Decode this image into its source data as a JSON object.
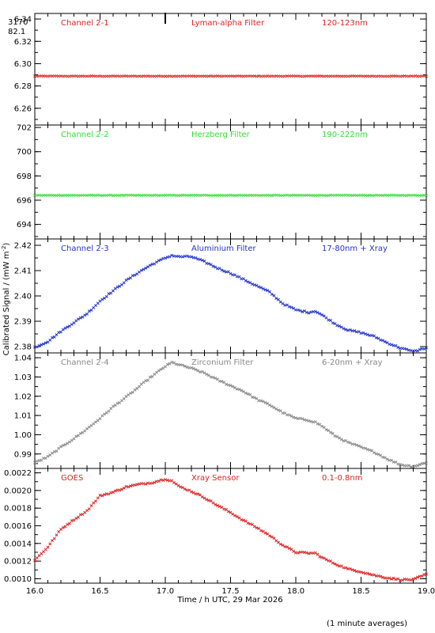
{
  "figure": {
    "ylabel": "Calibrated Signal / (mW m",
    "ylabel_sup": "-2",
    "ylabel_close": ")",
    "xlabel": "Time / h UTC, 29 Mar 2026",
    "footer": "(1 minute averages)",
    "corner_top": "3170",
    "corner_bottom": "82.1"
  },
  "chart_data": [
    {
      "type": "scatter",
      "texts": [
        "Channel 2-1",
        "Lyman-alpha Filter",
        "120-123nm"
      ],
      "color": "#dd2222",
      "ylim": [
        6.245,
        6.345
      ],
      "yticks": [
        6.26,
        6.28,
        6.3,
        6.32,
        6.34
      ],
      "ytick_labels": [
        "6.26",
        "6.28",
        "6.30",
        "6.32",
        "6.34"
      ],
      "x": [
        16.0,
        19.0
      ],
      "y": [
        6.2888,
        6.2888
      ]
    },
    {
      "type": "scatter",
      "texts": [
        "Channel 2-2",
        "Herzberg Filter",
        "190-222nm"
      ],
      "color": "#33dd33",
      "ylim": [
        692.8,
        702.2
      ],
      "yticks": [
        694,
        696,
        698,
        700,
        702
      ],
      "ytick_labels": [
        "694",
        "696",
        "698",
        "700",
        "702"
      ],
      "x": [
        16.0,
        19.0
      ],
      "y": [
        696.4,
        696.4
      ]
    },
    {
      "type": "scatter",
      "texts": [
        "Channel 2-3",
        "Aluminium Filter",
        "17-80nm + Xray"
      ],
      "color": "#2233cc",
      "ylim": [
        2.3775,
        2.4225
      ],
      "yticks": [
        2.38,
        2.39,
        2.4,
        2.41,
        2.42
      ],
      "ytick_labels": [
        "2.38",
        "2.39",
        "2.40",
        "2.41",
        "2.42"
      ],
      "x": [
        16.0,
        16.1,
        16.2,
        16.3,
        16.4,
        16.5,
        16.6,
        16.7,
        16.8,
        16.9,
        17.0,
        17.05,
        17.1,
        17.2,
        17.3,
        17.4,
        17.5,
        17.6,
        17.7,
        17.8,
        17.9,
        18.0,
        18.1,
        18.15,
        18.2,
        18.3,
        18.4,
        18.5,
        18.6,
        18.7,
        18.8,
        18.9,
        19.0
      ],
      "y": [
        2.3797,
        2.382,
        2.386,
        2.3895,
        2.393,
        2.398,
        2.402,
        2.406,
        2.4095,
        2.4125,
        2.415,
        2.416,
        2.4155,
        2.4155,
        2.4135,
        2.411,
        2.409,
        2.4065,
        2.404,
        2.4015,
        2.397,
        2.3945,
        2.3935,
        2.394,
        2.3925,
        2.389,
        2.3865,
        2.3855,
        2.384,
        2.3815,
        2.3795,
        2.378,
        2.3795
      ]
    },
    {
      "type": "scatter",
      "texts": [
        "Channel 2-4",
        "Zirconium Filter",
        "6-20nm + Xray"
      ],
      "color": "#888888",
      "ylim": [
        0.9825,
        1.0425
      ],
      "yticks": [
        0.99,
        1.0,
        1.01,
        1.02,
        1.03,
        1.04
      ],
      "ytick_labels": [
        "0.99",
        "1.00",
        "1.01",
        "1.02",
        "1.03",
        "1.04"
      ],
      "x": [
        16.0,
        16.1,
        16.2,
        16.3,
        16.4,
        16.5,
        16.6,
        16.7,
        16.8,
        16.9,
        17.0,
        17.05,
        17.1,
        17.2,
        17.3,
        17.4,
        17.5,
        17.6,
        17.7,
        17.8,
        17.9,
        18.0,
        18.1,
        18.15,
        18.2,
        18.3,
        18.4,
        18.5,
        18.6,
        18.7,
        18.8,
        18.9,
        19.0
      ],
      "y": [
        0.9855,
        0.9885,
        0.9935,
        0.998,
        1.003,
        1.0085,
        1.0145,
        1.0195,
        1.025,
        1.0305,
        1.0355,
        1.0375,
        1.0365,
        1.0345,
        1.032,
        1.0285,
        1.0255,
        1.0225,
        1.0185,
        1.0155,
        1.0115,
        1.0085,
        1.0075,
        1.0065,
        1.0045,
        0.9995,
        0.996,
        0.9935,
        0.991,
        0.9875,
        0.9845,
        0.9835,
        0.9855
      ]
    },
    {
      "type": "scatter",
      "texts": [
        "GOES",
        "Xray Sensor",
        "0.1-0.8nm"
      ],
      "color": "#dd2222",
      "ylim": [
        0.00095,
        0.00225
      ],
      "yticks": [
        0.001,
        0.0012,
        0.0014,
        0.0016,
        0.0018,
        0.002,
        0.0022
      ],
      "ytick_labels": [
        "0.0010",
        "0.0012",
        "0.0014",
        "0.0016",
        "0.0018",
        "0.0020",
        "0.0022"
      ],
      "x": [
        16.0,
        16.1,
        16.2,
        16.3,
        16.4,
        16.5,
        16.6,
        16.7,
        16.8,
        16.9,
        17.0,
        17.05,
        17.1,
        17.2,
        17.3,
        17.4,
        17.5,
        17.6,
        17.7,
        17.8,
        17.9,
        18.0,
        18.1,
        18.15,
        18.2,
        18.3,
        18.4,
        18.5,
        18.6,
        18.7,
        18.8,
        18.9,
        19.0
      ],
      "y": [
        0.00121,
        0.00136,
        0.00156,
        0.00167,
        0.00177,
        0.00194,
        0.00198,
        0.00204,
        0.00207,
        0.00209,
        0.00213,
        0.00211,
        0.00205,
        0.00199,
        0.00192,
        0.00183,
        0.00175,
        0.00166,
        0.00158,
        0.00149,
        0.00138,
        0.0013,
        0.00129,
        0.00129,
        0.00124,
        0.00117,
        0.00111,
        0.00108,
        0.00104,
        0.00101,
        0.00099,
        0.00099,
        0.00105
      ]
    }
  ],
  "x_axis": {
    "xlim": [
      16.0,
      19.0
    ],
    "ticks": [
      16.0,
      16.5,
      17.0,
      17.5,
      18.0,
      18.5,
      19.0
    ],
    "tick_labels": [
      "16.0",
      "16.5",
      "17.0",
      "17.5",
      "18.0",
      "18.5",
      "19.0"
    ],
    "minor_step": 0.1
  }
}
